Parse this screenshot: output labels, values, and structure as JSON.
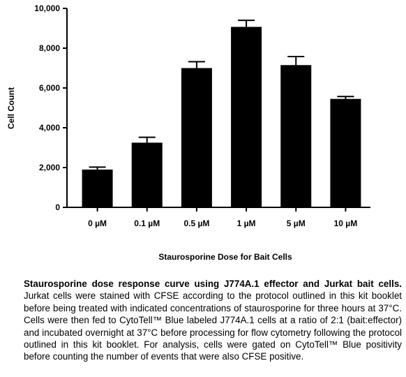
{
  "chart_data": {
    "type": "bar",
    "categories": [
      "0 µM",
      "0.1 µM",
      "0.5 µM",
      "1 µM",
      "5 µM",
      "10 µM"
    ],
    "values": [
      1900,
      3250,
      7000,
      9070,
      7150,
      5450
    ],
    "errors": [
      120,
      270,
      320,
      330,
      430,
      120
    ],
    "xlabel": "Staurosporine Dose for Bait Cells",
    "ylabel": "Cell Count",
    "ylim": [
      0,
      10000
    ],
    "yticks": [
      0,
      2000,
      4000,
      6000,
      8000,
      10000
    ],
    "ytick_labels": [
      "0",
      "2,000",
      "4,000",
      "6,000",
      "8,000",
      "10,000"
    ],
    "grid": false,
    "bar_color": "#000000"
  },
  "caption": {
    "title": "Staurosporine dose response curve using J774A.1 effector and Jurkat bait cells.",
    "body": "Jurkat cells were stained with CFSE according to the protocol outlined in this kit booklet before being treated with indicated concentrations of staurosporine for three hours at 37°C. Cells were then fed to CytoTell™ Blue labeled J774A.1 cells at a ratio of 2:1 (bait:effector) and incubated overnight at 37°C before processing for flow cytometry following the protocol outlined in this kit booklet. For analysis, cells were gated on CytoTell™ Blue positivity before counting the number of events that were also CFSE positive."
  }
}
